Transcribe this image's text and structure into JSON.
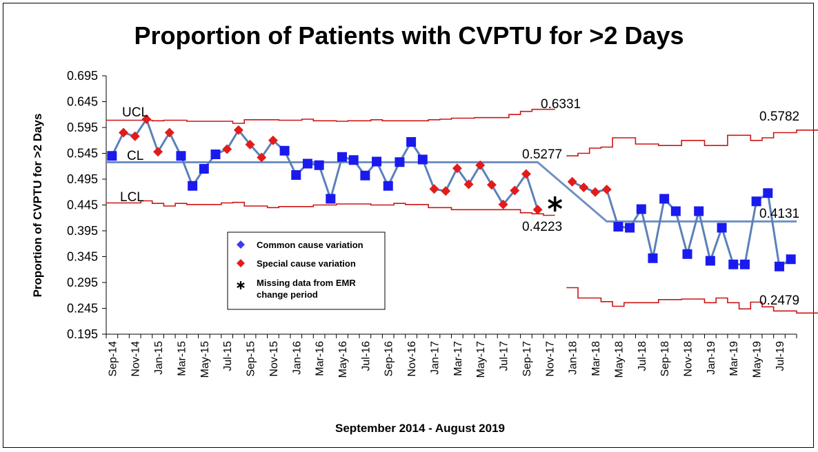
{
  "chart_data": {
    "type": "line",
    "title": "Proportion of Patients with CVPTU for >2 Days",
    "xlabel": "September 2014 - August 2019",
    "ylabel": "Proportion of CVPTU for >2 Days",
    "ylim": [
      0.195,
      0.695
    ],
    "y_ticks": [
      "0.695",
      "0.645",
      "0.595",
      "0.545",
      "0.495",
      "0.445",
      "0.395",
      "0.345",
      "0.295",
      "0.245",
      "0.195"
    ],
    "x_tick_labels": [
      "Sep-14",
      "Nov-14",
      "Jan-15",
      "Mar-15",
      "May-15",
      "Jul-15",
      "Sep-15",
      "Nov-15",
      "Jan-16",
      "Mar-16",
      "May-16",
      "Jul-16",
      "Sep-16",
      "Nov-16",
      "Jan-17",
      "Mar-17",
      "May-17",
      "Jul-17",
      "Sep-17",
      "Nov-17",
      "Jan-18",
      "Mar-18",
      "May-18",
      "Jul-18",
      "Sep-18",
      "Nov-18",
      "Jan-19",
      "Mar-19",
      "May-19",
      "Jul-19"
    ],
    "months": [
      "2014-09",
      "2014-10",
      "2014-11",
      "2014-12",
      "2015-01",
      "2015-02",
      "2015-03",
      "2015-04",
      "2015-05",
      "2015-06",
      "2015-07",
      "2015-08",
      "2015-09",
      "2015-10",
      "2015-11",
      "2015-12",
      "2016-01",
      "2016-02",
      "2016-03",
      "2016-04",
      "2016-05",
      "2016-06",
      "2016-07",
      "2016-08",
      "2016-09",
      "2016-10",
      "2016-11",
      "2016-12",
      "2017-01",
      "2017-02",
      "2017-03",
      "2017-04",
      "2017-05",
      "2017-06",
      "2017-07",
      "2017-08",
      "2017-09",
      "2017-10",
      "2017-11",
      "2017-12",
      "2018-01",
      "2018-02",
      "2018-03",
      "2018-04",
      "2018-05",
      "2018-06",
      "2018-07",
      "2018-08",
      "2018-09",
      "2018-10",
      "2018-11",
      "2018-12",
      "2019-01",
      "2019-02",
      "2019-03",
      "2019-04",
      "2019-05",
      "2019-06",
      "2019-07",
      "2019-08"
    ],
    "series": [
      {
        "name": "Proportion",
        "values": [
          0.54,
          0.585,
          0.578,
          0.611,
          0.548,
          0.585,
          0.54,
          0.482,
          0.515,
          0.543,
          0.553,
          0.59,
          0.562,
          0.537,
          0.57,
          0.55,
          0.503,
          0.525,
          0.522,
          0.457,
          0.538,
          0.532,
          0.502,
          0.529,
          0.482,
          0.528,
          0.567,
          0.533,
          0.476,
          0.472,
          0.516,
          0.485,
          0.522,
          0.484,
          0.446,
          0.473,
          0.505,
          0.436,
          null,
          null,
          0.49,
          0.479,
          0.47,
          0.475,
          0.403,
          0.401,
          0.437,
          0.342,
          0.457,
          0.433,
          0.35,
          0.433,
          0.337,
          0.401,
          0.33,
          0.33,
          0.452,
          0.468,
          0.326,
          0.34
        ],
        "variation": [
          "common",
          "special",
          "special",
          "special",
          "special",
          "special",
          "common",
          "common",
          "common",
          "common",
          "special",
          "special",
          "special",
          "special",
          "special",
          "common",
          "common",
          "common",
          "common",
          "common",
          "common",
          "common",
          "common",
          "common",
          "common",
          "common",
          "common",
          "common",
          "special",
          "special",
          "special",
          "special",
          "special",
          "special",
          "special",
          "special",
          "special",
          "special",
          null,
          null,
          "special",
          "special",
          "special",
          "special",
          "common",
          "common",
          "common",
          "common",
          "common",
          "common",
          "common",
          "common",
          "common",
          "common",
          "common",
          "common",
          "common",
          "common",
          "common",
          "common"
        ]
      }
    ],
    "center_line": [
      {
        "from": "2014-09",
        "to": "2017-09",
        "value": 0.5277
      },
      {
        "from": "2018-01",
        "to": "2019-08",
        "value": 0.4131
      }
    ],
    "ucl": {
      "period1": [
        0.609,
        0.609,
        0.609,
        0.609,
        0.608,
        0.609,
        0.609,
        0.607,
        0.607,
        0.607,
        0.607,
        0.603,
        0.61,
        0.61,
        0.61,
        0.609,
        0.609,
        0.611,
        0.608,
        0.608,
        0.607,
        0.608,
        0.608,
        0.61,
        0.608,
        0.608,
        0.608,
        0.608,
        0.61,
        0.611,
        0.613,
        0.613,
        0.614,
        0.614,
        0.614,
        0.62,
        0.626,
        0.63,
        0.63
      ],
      "period2": [
        0.54,
        0.545,
        0.555,
        0.557,
        0.575,
        0.575,
        0.563,
        0.563,
        0.56,
        0.56,
        0.57,
        0.57,
        0.56,
        0.56,
        0.58,
        0.58,
        0.57,
        0.575,
        0.585,
        0.585,
        0.59,
        0.59,
        0.592,
        0.585,
        0.6,
        0.578,
        0.583,
        0.584
      ]
    },
    "lcl": {
      "period1": [
        0.449,
        0.449,
        0.449,
        0.453,
        0.448,
        0.443,
        0.448,
        0.446,
        0.446,
        0.446,
        0.449,
        0.45,
        0.443,
        0.443,
        0.44,
        0.442,
        0.442,
        0.442,
        0.445,
        0.445,
        0.447,
        0.447,
        0.447,
        0.445,
        0.445,
        0.448,
        0.446,
        0.446,
        0.44,
        0.44,
        0.436,
        0.436,
        0.436,
        0.436,
        0.436,
        0.436,
        0.43,
        0.428,
        0.425
      ],
      "period2": [
        0.285,
        0.265,
        0.265,
        0.258,
        0.249,
        0.256,
        0.256,
        0.256,
        0.262,
        0.262,
        0.263,
        0.263,
        0.256,
        0.265,
        0.256,
        0.244,
        0.257,
        0.248,
        0.24,
        0.24,
        0.236,
        0.236,
        0.232,
        0.24,
        0.225,
        0.244,
        0.238,
        0.238
      ]
    },
    "annotations": {
      "ucl_label": "UCL",
      "cl_label": "CL",
      "lcl_label": "LCL",
      "ucl1_value": "0.6331",
      "cl1_value": "0.5277",
      "lcl1_value": "0.4223",
      "ucl2_value": "0.5782",
      "cl2_value": "0.4131",
      "lcl2_value": "0.2479"
    },
    "legend": [
      {
        "label": "Common cause variation",
        "marker": "diamond",
        "color": "#3b3bf0"
      },
      {
        "label": "Special cause variation",
        "marker": "diamond",
        "color": "#e31b1b"
      },
      {
        "label": "Missing data from EMR change period",
        "marker": "asterisk",
        "color": "#000000"
      }
    ],
    "legend_placement": "lower-left inside plot",
    "grid": false,
    "colors": {
      "line": "#5a81b8",
      "common_marker": "#1a1aef",
      "special_marker": "#e31b1b",
      "limits": "#cc1414"
    }
  }
}
